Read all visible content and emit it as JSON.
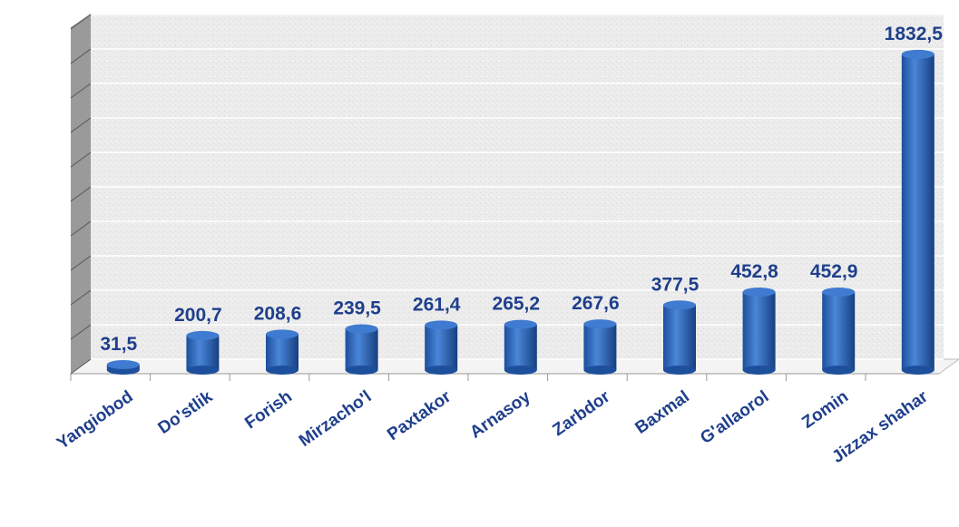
{
  "chart_data": {
    "type": "bar",
    "categories": [
      "Yangiobod",
      "Do'stlik",
      "Forish",
      "Mirzacho'l",
      "Paxtakor",
      "Arnasoy",
      "Zarbdor",
      "Baxmal",
      "G'allaorol",
      "Zomin",
      "Jizzax shahar"
    ],
    "values": [
      31.5,
      200.7,
      208.6,
      239.5,
      261.4,
      265.2,
      267.6,
      377.5,
      452.8,
      452.9,
      1832.5
    ],
    "value_labels": [
      "31,5",
      "200,7",
      "208,6",
      "239,5",
      "261,4",
      "265,2",
      "267,6",
      "377,5",
      "452,8",
      "452,9",
      "1832,5"
    ],
    "color": "#2e6bc4",
    "ylim": [
      0,
      2000
    ],
    "yticks": [
      0,
      200,
      400,
      600,
      800,
      1000,
      1200,
      1400,
      1600,
      1800,
      2000
    ],
    "grid": true
  }
}
